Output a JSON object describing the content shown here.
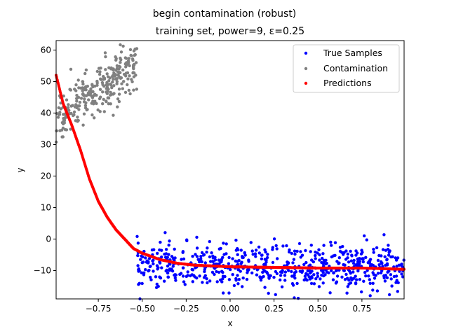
{
  "suptitle": "begin contamination (robust)",
  "chart_data": {
    "type": "scatter",
    "title": "training set, power=9, ε=0.25",
    "xlabel": "x",
    "ylabel": "y",
    "xlim": [
      -0.99,
      0.99
    ],
    "ylim": [
      -19,
      63
    ],
    "xticks": [
      -0.75,
      -0.5,
      -0.25,
      0.0,
      0.25,
      0.5,
      0.75
    ],
    "xtick_labels": [
      "−0.75",
      "−0.50",
      "−0.25",
      "0.00",
      "0.25",
      "0.50",
      "0.75"
    ],
    "yticks": [
      -10,
      0,
      10,
      20,
      30,
      40,
      50,
      60
    ],
    "ytick_labels": [
      "−10",
      "0",
      "10",
      "20",
      "30",
      "40",
      "50",
      "60"
    ],
    "grid": false,
    "legend_position": "top-right",
    "series": [
      {
        "name": "True Samples",
        "color": "#0000ff",
        "description": "noisy points around y ≈ -8 to -10",
        "x_range": [
          -0.53,
          0.99
        ],
        "y_center": -8.7,
        "y_spread": 3.5,
        "count": 640
      },
      {
        "name": "Contamination",
        "color": "#808080",
        "description": "upward band of points",
        "x_range": [
          -0.99,
          -0.53
        ],
        "y_start": 38,
        "y_end": 56,
        "y_spread": 4,
        "count": 300
      },
      {
        "name": "Predictions",
        "color": "#ff0000",
        "description": "fitted curve",
        "curve_points": [
          [
            -0.99,
            52
          ],
          [
            -0.95,
            43
          ],
          [
            -0.9,
            36
          ],
          [
            -0.85,
            28
          ],
          [
            -0.8,
            19
          ],
          [
            -0.75,
            12
          ],
          [
            -0.7,
            7
          ],
          [
            -0.65,
            3
          ],
          [
            -0.6,
            0
          ],
          [
            -0.55,
            -3
          ],
          [
            -0.5,
            -4.5
          ],
          [
            -0.4,
            -6.5
          ],
          [
            -0.3,
            -7.7
          ],
          [
            -0.2,
            -8.3
          ],
          [
            0.0,
            -8.8
          ],
          [
            0.25,
            -9.0
          ],
          [
            0.5,
            -9.2
          ],
          [
            0.75,
            -9.2
          ],
          [
            0.99,
            -9.6
          ]
        ]
      }
    ]
  }
}
